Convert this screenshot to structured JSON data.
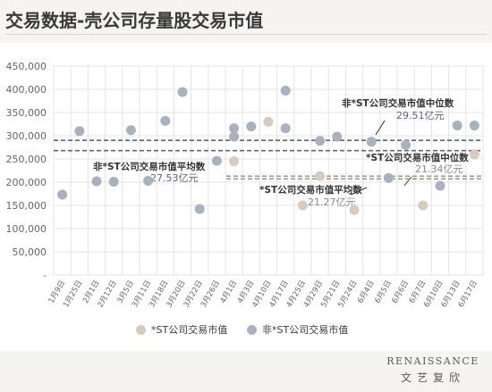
{
  "title": "交易数据-壳公司存量股交易市值",
  "legend": {
    "st_label": "*ST公司交易市值",
    "nonst_label": "非*ST公司交易市值"
  },
  "brand": {
    "en": "RENAISSANCE",
    "cn": "文艺复欣"
  },
  "colors": {
    "st": "#d7cbbd",
    "nonst": "#a8b2bf",
    "st_line": "#9e968d",
    "nonst_line": "#5b6577",
    "grid": "#e4e4e4"
  },
  "chart_data": {
    "type": "scatter",
    "title": "",
    "xlabel": "",
    "ylabel": "",
    "ylim": [
      0,
      450000
    ],
    "yticks": [
      "-",
      "50,000",
      "100,000",
      "150,000",
      "200,000",
      "250,000",
      "300,000",
      "350,000",
      "400,000",
      "450,000"
    ],
    "grid": true,
    "legend_position": "bottom",
    "categories": [
      "1月9日",
      "1月25日",
      "2月1日",
      "2月12日",
      "3月5日",
      "3月11日",
      "3月18日",
      "3月20日",
      "3月22日",
      "3月26日",
      "4月1日",
      "4月3日",
      "4月10日",
      "4月17日",
      "4月25日",
      "4月29日",
      "5月21日",
      "5月24日",
      "6月4日",
      "6月5日",
      "6月6日",
      "6月7日",
      "6月10日",
      "6月13日",
      "6月17日"
    ],
    "series": [
      {
        "name": "*ST公司交易市值",
        "points": [
          {
            "x": "4月1日",
            "y": 245000
          },
          {
            "x": "4月10日",
            "y": 330000
          },
          {
            "x": "4月25日",
            "y": 150000
          },
          {
            "x": "4月29日",
            "y": 213000
          },
          {
            "x": "5月24日",
            "y": 140000
          },
          {
            "x": "6月7日",
            "y": 150000
          },
          {
            "x": "6月17日",
            "y": 260000
          }
        ]
      },
      {
        "name": "非*ST公司交易市值",
        "points": [
          {
            "x": "1月9日",
            "y": 173000
          },
          {
            "x": "1月25日",
            "y": 310000
          },
          {
            "x": "2月1日",
            "y": 202000
          },
          {
            "x": "2月12日",
            "y": 201000
          },
          {
            "x": "3月5日",
            "y": 312000
          },
          {
            "x": "3月11日",
            "y": 203000
          },
          {
            "x": "3月18日",
            "y": 332000
          },
          {
            "x": "3月20日",
            "y": 394000
          },
          {
            "x": "3月22日",
            "y": 142000
          },
          {
            "x": "3月26日",
            "y": 246000
          },
          {
            "x": "4月1日",
            "y": 316000
          },
          {
            "x": "4月1日",
            "y": 298000
          },
          {
            "x": "4月3日",
            "y": 320000
          },
          {
            "x": "4月17日",
            "y": 397000
          },
          {
            "x": "4月17日",
            "y": 316000
          },
          {
            "x": "4月29日",
            "y": 289000
          },
          {
            "x": "5月21日",
            "y": 298000
          },
          {
            "x": "6月4日",
            "y": 287000
          },
          {
            "x": "6月5日",
            "y": 209000
          },
          {
            "x": "6月6日",
            "y": 280000
          },
          {
            "x": "6月10日",
            "y": 192000
          },
          {
            "x": "6月13日",
            "y": 322000
          },
          {
            "x": "6月17日",
            "y": 322000
          }
        ]
      }
    ],
    "reference_lines": [
      {
        "label": "非*ST公司交易市值中位数",
        "value_text": "29.51亿元",
        "y": 290000,
        "style": "dashed",
        "series": "非*ST公司交易市值"
      },
      {
        "label": "非*ST公司交易市值平均数",
        "value_text": "27.53亿元",
        "y": 268000,
        "style": "dashed",
        "series": "非*ST公司交易市值"
      },
      {
        "label": "*ST公司交易市值中位数",
        "value_text": "21.34亿元",
        "y": 213000,
        "style": "dashed",
        "series": "*ST公司交易市值"
      },
      {
        "label": "*ST公司交易市值平均数",
        "value_text": "21.27亿元",
        "y": 207000,
        "style": "dashed",
        "series": "*ST公司交易市值"
      }
    ]
  }
}
